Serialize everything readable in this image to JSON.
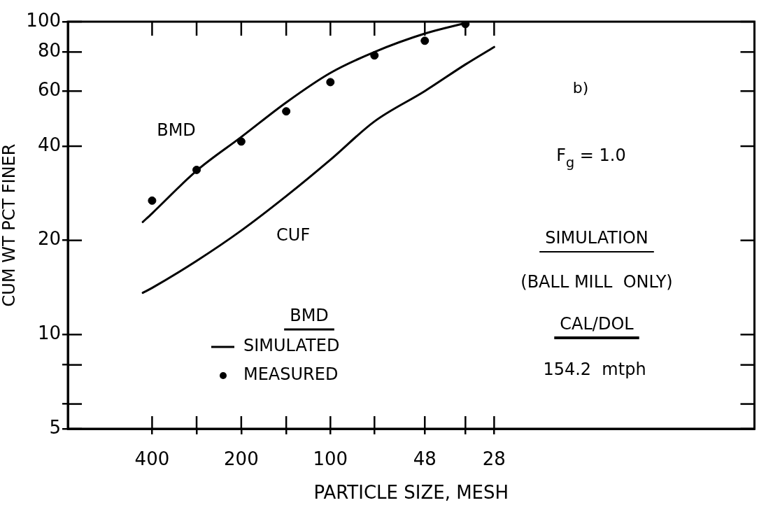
{
  "chart_data": {
    "type": "line",
    "xlabel": "PARTICLE SIZE, MESH",
    "ylabel": "CUM WT PCT FINER",
    "legend_title": "BMD",
    "legend": "bottom left",
    "log": "xy",
    "grid": false,
    "marker": "none",
    "line_style": "solid",
    "xlim": [
      770,
      3.7
    ],
    "xticks": [
      400,
      {
        "value": 283,
        "label": null
      },
      200,
      {
        "value": 141,
        "label": null
      },
      100,
      {
        "value": 71,
        "label": null
      },
      48,
      {
        "value": 35,
        "label": null
      },
      28
    ],
    "ylim": [
      5,
      100
    ],
    "yticks": [
      5,
      {
        "value": 6,
        "label": null
      },
      {
        "value": 8,
        "label": null
      },
      10,
      20,
      40,
      60,
      80,
      100
    ],
    "series": [
      {
        "name": "SIMULATED",
        "color": "#000000",
        "x": [
          430,
          400,
          283,
          200,
          141,
          100,
          71,
          48,
          35
        ],
        "values": [
          22.9,
          24.4,
          33.4,
          42.8,
          55.2,
          68.6,
          80,
          91.6,
          99
        ]
      },
      {
        "name": "CUF",
        "color": "#000000",
        "x": [
          430,
          400,
          283,
          200,
          141,
          100,
          71,
          48,
          35,
          28
        ],
        "values": [
          13.6,
          14.1,
          17.2,
          21.5,
          27.7,
          36.2,
          48,
          60,
          73,
          83
        ]
      },
      {
        "name": "MEASURED",
        "type": "scatter",
        "marker": "circle",
        "color": "#000000",
        "x": [
          400,
          283,
          200,
          141,
          100,
          71,
          48,
          35
        ],
        "values": [
          26.8,
          33.6,
          41.4,
          51.7,
          64.1,
          78,
          86.9,
          98.3
        ]
      }
    ],
    "annotations": [
      "BMD",
      "b)",
      "F$_{g}$ = 1.0",
      "SIMULATION",
      "(BALL MILL  ONLY)",
      "CAL/DOL",
      "154.2  mtph"
    ]
  }
}
